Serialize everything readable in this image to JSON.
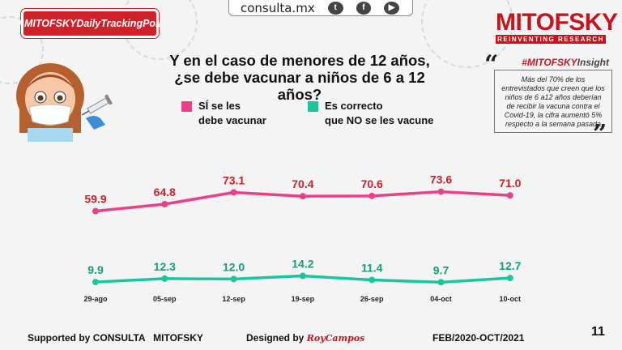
{
  "header": {
    "hashtag": "#MITOFSKYDailyTrackingPoll",
    "site": "consulta.mx",
    "social_icons": [
      "twitter-icon",
      "facebook-icon",
      "youtube-icon"
    ]
  },
  "logo": {
    "name": "MITOFSKY",
    "tagline": "REINVENTING RESEARCH"
  },
  "title_line1": "Y en el caso de menores de 12 años,",
  "title_line2": "¿se debe vacunar a niños de 6 a 12 años?",
  "legend": [
    {
      "line1": "SÍ se les",
      "line2": "debe vacunar",
      "color": "#ee3f86"
    },
    {
      "line1": "Es correcto",
      "line2": "que NO se les vacune",
      "color": "#19c89a"
    }
  ],
  "insight": {
    "label_prefix": "#",
    "label_brand": "MITOFSKY",
    "label_suffix": "Insight",
    "text": "Más del 70% de los entrevistados que creen que los niños de 6 a12 años deberían de recibir la vacuna contra el Covid-19, la cifra aumentó 5% respecto a la semana pasada"
  },
  "chart_data": {
    "type": "line",
    "categories": [
      "29-ago",
      "05-sep",
      "12-sep",
      "19-sep",
      "26-sep",
      "04-oct",
      "10-oct"
    ],
    "series": [
      {
        "name": "SÍ se les debe vacunar",
        "color": "#ee3f86",
        "label_color": "#d01f26",
        "values": [
          59.9,
          64.8,
          73.1,
          70.4,
          70.6,
          73.6,
          71.0
        ]
      },
      {
        "name": "Es correcto que NO se les vacune",
        "color": "#19c89a",
        "label_color": "#12a07b",
        "values": [
          9.9,
          12.3,
          12.0,
          14.2,
          11.4,
          9.7,
          12.7
        ]
      }
    ],
    "grid": false
  },
  "footer": {
    "supported_label": "Supported by",
    "supported_by": "CONSULTA   MITOFSKY",
    "designed_label": "Designed by",
    "designer": "RoyCampos",
    "period": "FEB/2020-OCT/2021",
    "page": "11"
  }
}
